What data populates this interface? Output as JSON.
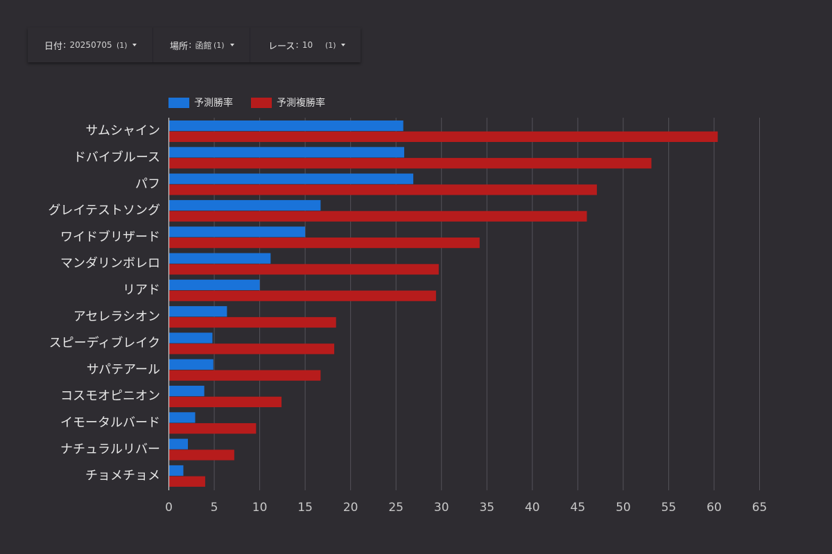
{
  "filters": [
    {
      "label": "日付",
      "value": "20250705",
      "count": "(1)"
    },
    {
      "label": "場所",
      "value": "函館",
      "count": "(1)"
    },
    {
      "label": "レース",
      "value": "10",
      "count": "(1)"
    }
  ],
  "chart_data": {
    "type": "bar",
    "orientation": "horizontal",
    "title": "",
    "xlabel": "",
    "ylabel": "",
    "xlim": [
      0,
      65
    ],
    "xticks": [
      0,
      5,
      10,
      15,
      20,
      25,
      30,
      35,
      40,
      45,
      50,
      55,
      60,
      65
    ],
    "grid": true,
    "legend_position": "top-left",
    "categories": [
      "サムシャイン",
      "ドバイブルース",
      "パフ",
      "グレイテストソング",
      "ワイドブリザード",
      "マンダリンボレロ",
      "リアド",
      "アセレラシオン",
      "スピーディブレイク",
      "サパテアール",
      "コスモオピニオン",
      "イモータルバード",
      "ナチュラルリバー",
      "チョメチョメ"
    ],
    "series": [
      {
        "name": "予測勝率",
        "color": "#1a73d9",
        "values": [
          25.8,
          25.9,
          26.9,
          16.7,
          15.0,
          11.2,
          10.0,
          6.4,
          4.8,
          4.9,
          3.9,
          2.9,
          2.1,
          1.6
        ]
      },
      {
        "name": "予測複勝率",
        "color": "#b71c1c",
        "values": [
          60.4,
          53.1,
          47.1,
          46.0,
          34.2,
          29.7,
          29.4,
          18.4,
          18.2,
          16.7,
          12.4,
          9.6,
          7.2,
          4.0
        ]
      }
    ]
  }
}
